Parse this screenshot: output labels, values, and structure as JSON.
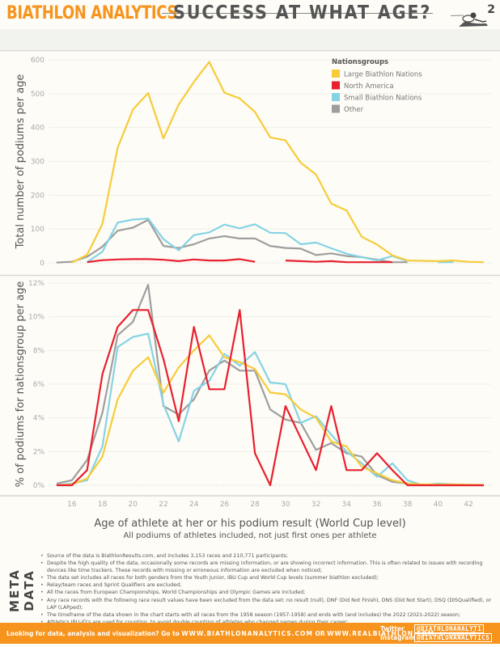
{
  "header": {
    "brand": "BIATHLON ANALYTICS",
    "title": "SUCCESS AT WHAT AGE?",
    "page_number": "2",
    "illustration": "skier-prone-shooting-icon"
  },
  "colors": {
    "brand_orange": "#f7941d",
    "large": "#f7cc3a",
    "north_america": "#e8202f",
    "small": "#86d3e6",
    "other": "#9e9e9e"
  },
  "legend": {
    "title": "Nationsgroups",
    "items": [
      {
        "label": "Large Biathlon Nations",
        "color": "#f7cc3a"
      },
      {
        "label": "North America",
        "color": "#e8202f"
      },
      {
        "label": "Small Biathlon Nations",
        "color": "#86d3e6"
      },
      {
        "label": "Other",
        "color": "#9e9e9e"
      }
    ]
  },
  "chart_data": [
    {
      "type": "line",
      "title": "",
      "ylabel": "Total number of podiums per age",
      "xlabel": "Age of athlete at her or his podium result (World Cup level)",
      "ylim": [
        0,
        600
      ],
      "yticks": [
        0,
        100,
        200,
        300,
        400,
        500,
        600
      ],
      "ytick_labels": [
        "0",
        "100",
        "200",
        "300",
        "400",
        "500",
        "600"
      ],
      "grid": true,
      "legend_position": "top-right",
      "x": [
        15,
        16,
        17,
        18,
        19,
        20,
        21,
        22,
        23,
        24,
        25,
        26,
        27,
        28,
        29,
        30,
        31,
        32,
        33,
        34,
        35,
        36,
        37,
        38,
        39,
        40,
        41,
        42,
        43
      ],
      "series": [
        {
          "name": "Large Biathlon Nations",
          "color": "#f7cc3a",
          "values": [
            null,
            1,
            24,
            115,
            340,
            453,
            502,
            368,
            468,
            535,
            594,
            503,
            486,
            446,
            371,
            362,
            296,
            261,
            175,
            155,
            77,
            54,
            22,
            7,
            6,
            5,
            7,
            3,
            2
          ]
        },
        {
          "name": "North America",
          "color": "#e8202f",
          "values": [
            null,
            null,
            2,
            8,
            10,
            11,
            11,
            9,
            5,
            10,
            7,
            7,
            11,
            3,
            null,
            7,
            5,
            3,
            5,
            2,
            2,
            2,
            2,
            null,
            null,
            null,
            null,
            null,
            null
          ]
        },
        {
          "name": "Small Biathlon Nations",
          "color": "#86d3e6",
          "values": [
            null,
            null,
            2,
            33,
            119,
            128,
            131,
            70,
            37,
            82,
            90,
            113,
            102,
            114,
            89,
            88,
            55,
            60,
            43,
            27,
            17,
            7,
            20,
            5,
            null,
            2,
            2,
            null,
            null
          ]
        },
        {
          "name": "Other",
          "color": "#9e9e9e",
          "values": [
            1,
            3,
            18,
            48,
            95,
            104,
            127,
            50,
            44,
            55,
            72,
            79,
            72,
            72,
            50,
            44,
            42,
            23,
            28,
            20,
            17,
            9,
            2,
            2,
            null,
            0,
            null,
            null,
            null
          ]
        }
      ]
    },
    {
      "type": "line",
      "title": "",
      "ylabel": "% of podiums for nationsgroup per age",
      "xlabel": "Age of athlete at her or his podium result (World Cup level)",
      "subtitle": "All podiums of athletes included, not just first ones per athlete",
      "ylim": [
        0,
        12
      ],
      "yticks": [
        0,
        2,
        4,
        6,
        8,
        10,
        12
      ],
      "ytick_labels": [
        "0%",
        "2%",
        "4%",
        "6%",
        "8%",
        "10%",
        "12%"
      ],
      "xticks": [
        16,
        18,
        20,
        22,
        24,
        26,
        28,
        30,
        32,
        34,
        36,
        38,
        40,
        42
      ],
      "xtick_labels": [
        "16",
        "18",
        "20",
        "22",
        "24",
        "26",
        "28",
        "30",
        "32",
        "34",
        "36",
        "38",
        "40",
        "42"
      ],
      "grid": true,
      "x": [
        15,
        16,
        17,
        18,
        19,
        20,
        21,
        22,
        23,
        24,
        25,
        26,
        27,
        28,
        29,
        30,
        31,
        32,
        33,
        34,
        35,
        36,
        37,
        38,
        39,
        40,
        41,
        42,
        43
      ],
      "series": [
        {
          "name": "Large Biathlon Nations",
          "color": "#f7cc3a",
          "values": [
            0,
            0.05,
            0.4,
            1.7,
            5.1,
            6.8,
            7.6,
            5.5,
            7.0,
            8.0,
            8.9,
            7.6,
            7.3,
            6.9,
            5.5,
            5.4,
            4.5,
            4.0,
            2.6,
            2.3,
            1.1,
            0.7,
            0.3,
            0.1,
            0.05,
            0.05,
            0.05,
            0.03,
            0.02
          ]
        },
        {
          "name": "North America",
          "color": "#e8202f",
          "values": [
            0,
            0,
            0.9,
            6.6,
            9.4,
            10.4,
            10.4,
            7.5,
            3.8,
            9.4,
            5.7,
            5.7,
            10.4,
            1.9,
            0,
            4.7,
            2.8,
            0.9,
            4.7,
            0.9,
            0.9,
            1.9,
            0.9,
            0,
            0,
            0,
            0,
            0,
            0
          ]
        },
        {
          "name": "Small Biathlon Nations",
          "color": "#86d3e6",
          "values": [
            0,
            0.1,
            0.3,
            2.3,
            8.2,
            8.8,
            9.0,
            4.8,
            2.6,
            5.6,
            6.2,
            7.8,
            7.1,
            7.9,
            6.1,
            6.0,
            3.7,
            4.1,
            3.0,
            2.0,
            1.3,
            0.5,
            1.3,
            0.3,
            0,
            0.1,
            0.05,
            0,
            0
          ]
        },
        {
          "name": "Other",
          "color": "#9e9e9e",
          "values": [
            0.1,
            0.3,
            1.5,
            4.3,
            8.9,
            9.7,
            11.9,
            4.7,
            4.2,
            5.1,
            6.8,
            7.4,
            6.8,
            6.8,
            4.5,
            3.9,
            3.7,
            2.1,
            2.5,
            1.9,
            1.7,
            0.6,
            0.2,
            0.1,
            0,
            0,
            0,
            0,
            0
          ]
        }
      ]
    }
  ],
  "axis": {
    "xlabel": "Age of athlete at her or his podium result (World Cup level)",
    "xsub": "All podiums of athletes included, not just first ones per athlete"
  },
  "meta": {
    "label": "META DATA",
    "items": [
      "Source of the data is BiathlonResults.com, and includes 3,153 races and 210,771 participants;",
      "Despite the high quality of the data, occasionally some records are missing information, or are showing incorrect information. This is often related to issues with recording devices like time trackers. These records with missing or erroneous information are excluded when noticed;",
      "The data set includes all races for both genders from the Youth Junior, IBU Cup and World Cup levels (summer biathlon excluded);",
      "Relay/team races and Sprint Qualifiers are excluded;",
      "All the races from European Championships, World Championships and Olympic Games are included;",
      "Any race records with the following race result values have been excluded from the data set: no result (null), DNF (Did Not Finish), DNS (Did Not Start), DSQ (DISQualified), or LAP (LAPped);",
      "The timeframe of the data shown in the chart starts with all races from the 1958 season (1957-1958) and ends with (and includes) the 2022 (2021-2022) season;",
      "Athlete's IBU-ID's are used for counting, to avoid double counting of athletes who changed names during their career;",
      "Athlete ages at a race are calculated based on their birthday stored at IBU and the start date of the race in full years."
    ]
  },
  "footer": {
    "text_prefix": "Looking for data, analysis and visualization? Go to ",
    "url1": "WWW.BIATHLONANALYTICS.COM",
    "or": " OR ",
    "url2": "WWW.REALBIATHLON.COM",
    "text_suffix": ", or connect",
    "twitter_label": "Twitter",
    "twitter_handle": "@BIATHLONANALYT1",
    "instagram_label": "Instagram",
    "instagram_handle": "@BIATHLONANALYTICS"
  }
}
